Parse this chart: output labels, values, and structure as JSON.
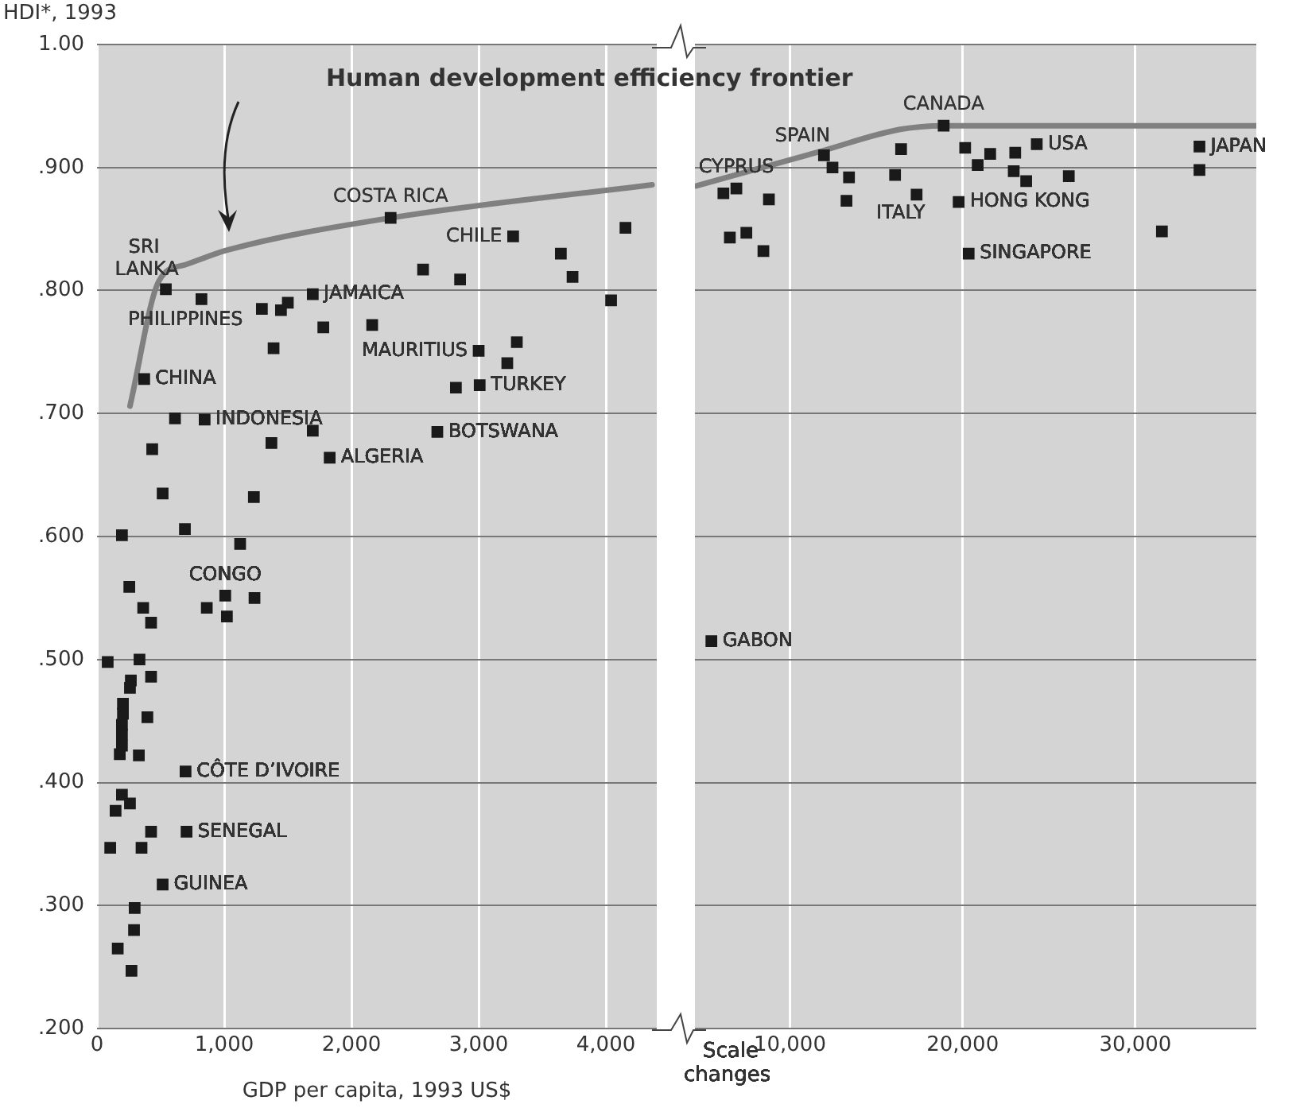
{
  "chart_data": [
    {
      "type": "scatter",
      "ylabel": "HDI*, 1993",
      "xlabel": "GDP per capita, 1993 US$",
      "xlim": [
        0,
        4400
      ],
      "ylim": [
        0.2,
        1.0
      ],
      "xticks": [
        0,
        {
          "value": 1000,
          "label": "1,000"
        },
        {
          "value": 2000,
          "label": "2,000"
        },
        {
          "value": 3000,
          "label": "3,000"
        },
        {
          "value": 4000,
          "label": "4,000"
        }
      ],
      "yticks": [
        {
          "value": 0.2,
          "label": ".200"
        },
        {
          "value": 0.3,
          "label": ".300"
        },
        {
          "value": 0.4,
          "label": ".400"
        },
        {
          "value": 0.5,
          "label": ".500"
        },
        {
          "value": 0.6,
          "label": ".600"
        },
        {
          "value": 0.7,
          "label": ".700"
        },
        {
          "value": 0.8,
          "label": ".800"
        },
        {
          "value": 0.9,
          "label": ".900"
        },
        {
          "value": 1.0,
          "label": "1.00"
        }
      ],
      "grid": true,
      "legend": false,
      "marker": "square",
      "series": [
        {
          "type": "line",
          "name": "Human development efficiency frontier",
          "marker": "none",
          "color": "#808080",
          "x": [
            259,
            488,
            696,
            1029,
            2308,
            4363
          ],
          "values": [
            0.706,
            0.808,
            0.821,
            0.833,
            0.859,
            0.886
          ]
        },
        {
          "type": "scatter",
          "color": "#1a1a1a",
          "x": [
            2308,
            3271,
            3646,
            4154,
            3738,
            4041,
            2563,
            2854,
            541,
            821,
            1296,
            1446,
            1500,
            1696,
            1779,
            2163,
            1388,
            3000,
            3300,
            3225,
            2821,
            3008,
            371,
            613,
            846,
            1696,
            1371,
            2675,
            1829,
            434,
            516,
            1233,
            196,
            691,
            1125,
            254,
            363,
            425,
            863,
            1008,
            1021,
            1238,
            84,
            334,
            425,
            266,
            259,
            204,
            204,
            196,
            196,
            196,
            179,
            329,
            396,
            696,
            196,
            259,
            146,
            425,
            704,
            104,
            350,
            516,
            296,
            291,
            163,
            271
          ],
          "values": [
            0.859,
            0.844,
            0.83,
            0.851,
            0.811,
            0.792,
            0.817,
            0.809,
            0.801,
            0.793,
            0.785,
            0.784,
            0.79,
            0.797,
            0.77,
            0.772,
            0.753,
            0.751,
            0.758,
            0.741,
            0.721,
            0.723,
            0.728,
            0.696,
            0.695,
            0.686,
            0.676,
            0.685,
            0.664,
            0.671,
            0.635,
            0.632,
            0.601,
            0.606,
            0.594,
            0.559,
            0.542,
            0.53,
            0.542,
            0.552,
            0.535,
            0.55,
            0.498,
            0.5,
            0.486,
            0.483,
            0.477,
            0.464,
            0.456,
            0.447,
            0.439,
            0.43,
            0.423,
            0.422,
            0.453,
            0.409,
            0.39,
            0.383,
            0.377,
            0.36,
            0.36,
            0.347,
            0.347,
            0.317,
            0.298,
            0.28,
            0.265,
            0.247
          ]
        }
      ],
      "annotations": [
        {
          "text": "COSTA RICA",
          "x": 2308,
          "y": 0.859
        },
        {
          "text": "CHILE",
          "x": 3271,
          "y": 0.844
        },
        {
          "text": "SRI LANKA",
          "x": 541,
          "y": 0.801
        },
        {
          "text": "PHILIPPINES",
          "x": 821,
          "y": 0.793
        },
        {
          "text": "JAMAICA",
          "x": 1696,
          "y": 0.797
        },
        {
          "text": "MAURITIUS",
          "x": 3000,
          "y": 0.751
        },
        {
          "text": "TURKEY",
          "x": 3008,
          "y": 0.723
        },
        {
          "text": "CHINA",
          "x": 371,
          "y": 0.728
        },
        {
          "text": "INDONESIA",
          "x": 846,
          "y": 0.695
        },
        {
          "text": "BOTSWANA",
          "x": 2675,
          "y": 0.685
        },
        {
          "text": "ALGERIA",
          "x": 1829,
          "y": 0.664
        },
        {
          "text": "CONGO",
          "x": 1008,
          "y": 0.552
        },
        {
          "text": "CÔTE D’IVOIRE",
          "x": 696,
          "y": 0.409
        },
        {
          "text": "SENEGAL",
          "x": 704,
          "y": 0.36
        },
        {
          "text": "GUINEA",
          "x": 516,
          "y": 0.317
        }
      ]
    },
    {
      "type": "scatter",
      "xlim": [
        4500,
        37000
      ],
      "ylim": [
        0.2,
        1.0
      ],
      "tick_labels": "x",
      "xticks": [
        {
          "value": 10000,
          "label": "10,000"
        },
        {
          "value": 20000,
          "label": "20,000"
        },
        {
          "value": 30000,
          "label": "30,000"
        }
      ],
      "yticks": [
        0.2,
        0.3,
        0.4,
        0.5,
        0.6,
        0.7,
        0.8,
        0.9,
        1.0
      ],
      "grid": true,
      "legend": false,
      "marker": "square",
      "series": [
        {
          "type": "line",
          "marker": "none",
          "color": "#808080",
          "x": [
            4583,
            11739,
            16377,
            18899,
            37000
          ],
          "values": [
            0.885,
            0.913,
            0.931,
            0.934,
            0.934
          ]
        },
        {
          "type": "scatter",
          "color": "#1a1a1a",
          "x": [
            18899,
            6899,
            6148,
            8783,
            6522,
            7478,
            8464,
            11971,
            12464,
            13420,
            13275,
            16435,
            16087,
            17333,
            20145,
            21594,
            20870,
            23043,
            24290,
            22957,
            23678,
            26145,
            19768,
            20348,
            31536,
            33710,
            33710,
            5452
          ],
          "values": [
            0.934,
            0.883,
            0.879,
            0.874,
            0.843,
            0.847,
            0.832,
            0.91,
            0.9,
            0.892,
            0.873,
            0.915,
            0.894,
            0.878,
            0.916,
            0.911,
            0.902,
            0.912,
            0.919,
            0.897,
            0.889,
            0.893,
            0.872,
            0.83,
            0.848,
            0.917,
            0.898,
            0.515
          ]
        }
      ],
      "annotations": [
        {
          "text": "CANADA",
          "x": 18899,
          "y": 0.934
        },
        {
          "text": "SPAIN",
          "x": 11971,
          "y": 0.91
        },
        {
          "text": "CYPRUS",
          "x": 6899,
          "y": 0.883
        },
        {
          "text": "ITALY",
          "x": 17333,
          "y": 0.878
        },
        {
          "text": "HONG KONG",
          "x": 19768,
          "y": 0.872
        },
        {
          "text": "USA",
          "x": 24290,
          "y": 0.919
        },
        {
          "text": "SINGAPORE",
          "x": 20348,
          "y": 0.83
        },
        {
          "text": "JAPAN",
          "x": 33710,
          "y": 0.917
        },
        {
          "text": "GABON",
          "x": 5452,
          "y": 0.515
        },
        "Scale changes"
      ]
    }
  ]
}
